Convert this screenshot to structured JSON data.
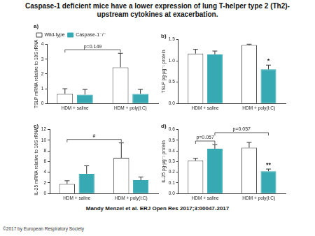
{
  "header": {
    "title": "Caspase-1 deficient mice have a lower expression of lung T-helper type 2 (Th2)-upstream cytokines at exacerbation."
  },
  "chart_data": [
    {
      "type": "bar",
      "title": "a)",
      "categories": [
        "HDM + saline",
        "HDM + poly(I:C)"
      ],
      "ylabel": "TSLP mRNA relative to 18S rRNA",
      "series": [
        {
          "name": "Wild-type",
          "color": "#ffffff",
          "values": [
            0.65,
            2.45
          ],
          "errors": [
            0.35,
            0.95
          ]
        },
        {
          "name": "Caspase-1⁻/⁻",
          "color": "#36a9b3",
          "values": [
            0.6,
            0.65
          ],
          "errors": [
            0.35,
            0.3
          ]
        }
      ],
      "ylim": [
        0,
        4
      ],
      "yticks": [
        0,
        1,
        2,
        3,
        4
      ],
      "grid": false,
      "legend": "top-left",
      "annotations": [
        {
          "text": "p=0.149",
          "between": [
            {
              "series": "Wild-type",
              "category": "HDM + saline"
            },
            {
              "series": "Wild-type",
              "category": "HDM + poly(I:C)"
            }
          ]
        }
      ]
    },
    {
      "type": "bar",
      "title": "b)",
      "categories": [
        "HDM + saline",
        "HDM + poly(I:C)"
      ],
      "ylabel": "TSLP pg·µg⁻¹ protein",
      "series": [
        {
          "name": "Wild-type",
          "color": "#ffffff",
          "values": [
            1.17,
            1.37
          ],
          "errors": [
            0.1,
            0.02
          ]
        },
        {
          "name": "Caspase-1⁻/⁻",
          "color": "#36a9b3",
          "values": [
            1.15,
            0.8
          ],
          "errors": [
            0.08,
            0.1
          ]
        }
      ],
      "ylim": [
        0,
        1.5
      ],
      "yticks": [
        {
          "value": 0,
          "label": "0.0"
        },
        0.5,
        {
          "value": 1,
          "label": "1.0"
        },
        1.5
      ],
      "grid": false,
      "annotations": [
        {
          "text": "*",
          "over": {
            "series": "Caspase-1⁻/⁻",
            "category": "HDM + poly(I:C)"
          }
        }
      ]
    },
    {
      "type": "bar",
      "title": "c)",
      "categories": [
        "HDM + saline",
        "HDM + poly(I:C)"
      ],
      "ylabel": "IL-25 mRNA relative to 18S rRNA",
      "series": [
        {
          "name": "Wild-type",
          "color": "#ffffff",
          "values": [
            1.8,
            6.7
          ],
          "errors": [
            0.6,
            2.8
          ]
        },
        {
          "name": "Caspase-1⁻/⁻",
          "color": "#36a9b3",
          "values": [
            3.7,
            2.5
          ],
          "errors": [
            1.5,
            0.6
          ]
        }
      ],
      "ylim": [
        0,
        12
      ],
      "yticks": [
        0,
        2,
        4,
        6,
        8,
        10,
        12
      ],
      "grid": false,
      "annotations": [
        {
          "text": "#",
          "between": [
            {
              "series": "Wild-type",
              "category": "HDM + saline"
            },
            {
              "series": "Wild-type",
              "category": "HDM + poly(I:C)"
            }
          ]
        }
      ]
    },
    {
      "type": "bar",
      "title": "d)",
      "categories": [
        "HDM + saline",
        "HDM + poly(I:C)"
      ],
      "ylabel": "IL-25 pg·µg⁻¹ protein",
      "series": [
        {
          "name": "Wild-type",
          "color": "#ffffff",
          "values": [
            0.31,
            0.43
          ],
          "errors": [
            0.02,
            0.05
          ]
        },
        {
          "name": "Caspase-1⁻/⁻",
          "color": "#36a9b3",
          "values": [
            0.42,
            0.21
          ],
          "errors": [
            0.04,
            0.02
          ]
        }
      ],
      "ylim": [
        0,
        0.6
      ],
      "yticks": [
        {
          "value": 0,
          "label": "0.0"
        },
        0.1,
        0.2,
        0.3,
        0.4,
        0.5,
        0.6
      ],
      "grid": false,
      "annotations": [
        {
          "text": "p=0.057",
          "between": [
            {
              "series": "Wild-type",
              "category": "HDM + saline"
            },
            {
              "series": "Caspase-1⁻/⁻",
              "category": "HDM + saline"
            }
          ]
        },
        {
          "text": "p=0.057",
          "between": [
            {
              "series": "Caspase-1⁻/⁻",
              "category": "HDM + saline"
            },
            {
              "series": "Caspase-1⁻/⁻",
              "category": "HDM + poly(I:C)"
            }
          ]
        },
        {
          "text": "**",
          "over": {
            "series": "Caspase-1⁻/⁻",
            "category": "HDM + poly(I:C)"
          }
        }
      ]
    }
  ],
  "footer": {
    "citation": "Mandy Menzel et al. ERJ Open Res 2017;3:00047-2017",
    "copyright": "©2017 by European Respiratory Society"
  }
}
